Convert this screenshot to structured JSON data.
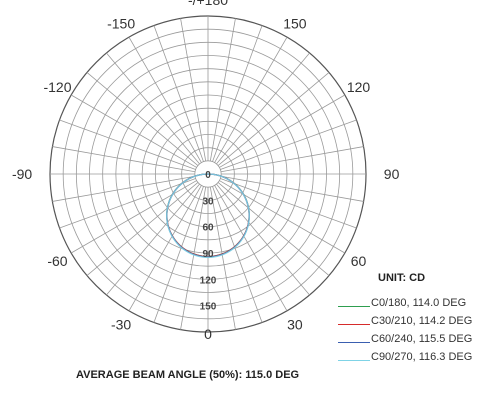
{
  "chart_data": {
    "type": "polar",
    "angle_labels": [
      {
        "text": "-/+180",
        "deg": 180
      },
      {
        "text": "150",
        "deg": 150
      },
      {
        "text": "-150",
        "deg": -150
      },
      {
        "text": "120",
        "deg": 120
      },
      {
        "text": "-120",
        "deg": -120
      },
      {
        "text": "90",
        "deg": 90
      },
      {
        "text": "-90",
        "deg": -90
      },
      {
        "text": "60",
        "deg": 60
      },
      {
        "text": "-60",
        "deg": -60
      },
      {
        "text": "30",
        "deg": 30
      },
      {
        "text": "-30",
        "deg": -30
      },
      {
        "text": "0",
        "deg": 0
      }
    ],
    "radial_ticks": [
      0,
      30,
      60,
      90,
      120,
      150
    ],
    "rmax": 180,
    "grid": true,
    "angle_step_deg": 10,
    "unit_label": "UNIT: CD",
    "series": [
      {
        "name": "C0/180, 114.0 DEG",
        "color": "#2e9e4f",
        "peak": 94.0,
        "shape": 0.0
      },
      {
        "name": "C30/210, 114.2 DEG",
        "color": "#d62b2b",
        "peak": 94.0,
        "shape": 0.01
      },
      {
        "name": "C60/240, 115.5 DEG",
        "color": "#3a5fb0",
        "peak": 94.5,
        "shape": 0.02
      },
      {
        "name": "C90/270, 116.3 DEG",
        "color": "#7fd3e6",
        "peak": 95.0,
        "shape": 0.03
      }
    ],
    "footer": "AVERAGE BEAM ANGLE (50%): 115.0 DEG"
  }
}
